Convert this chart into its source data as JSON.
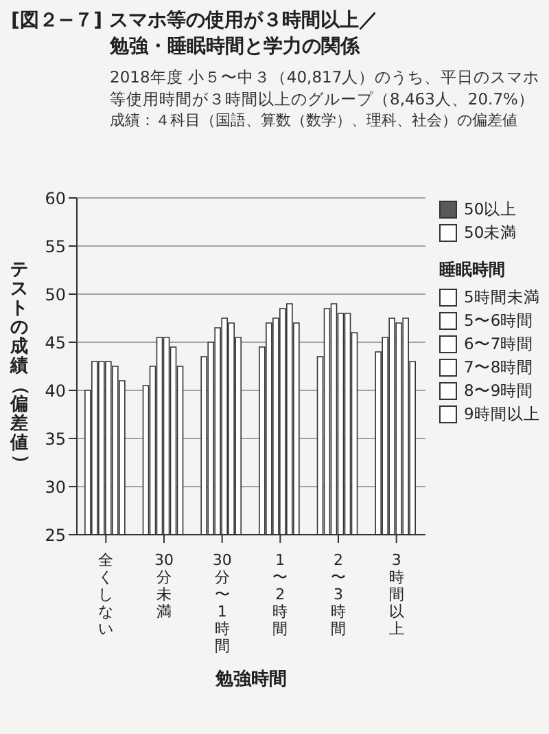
{
  "chart_data": {
    "type": "bar",
    "title": "[図２−７] スマホ等の使用が３時間以上／勉強・睡眠時間と学力の関係",
    "subtitle": "2018年度 小５〜中３（40,817人）のうち、平日のスマホ等使用時間が３時間以上のグループ（8,463人、20.7%）",
    "annotations": [
      "成績：４科目（国語、算数（数学）、理科、社会）の偏差値"
    ],
    "xlabel": "勉強時間",
    "ylabel": "テストの成績（偏差値）",
    "legend_title": "睡眠時間",
    "categories": [
      "全くしない",
      "30分未満",
      "30分〜1時間",
      "1〜2時間",
      "2〜3時間",
      "3時間以上"
    ],
    "series": [
      {
        "name": "50以上",
        "color": "#595959",
        "values": [
          null,
          null,
          null,
          null,
          null,
          null
        ]
      },
      {
        "name": "50未満",
        "color": "#ffffff",
        "values": [
          null,
          null,
          null,
          null,
          null,
          null
        ]
      },
      {
        "name": "5時間未満",
        "color": "#ffffff",
        "values": [
          40,
          40.5,
          43.5,
          44.5,
          43.5,
          44
        ]
      },
      {
        "name": "5〜6時間",
        "color": "#ffffff",
        "values": [
          43,
          42.5,
          45,
          47,
          48.5,
          45.5
        ]
      },
      {
        "name": "6〜7時間",
        "color": "#ffffff",
        "values": [
          43,
          45.5,
          46.5,
          47.5,
          49,
          47.5
        ]
      },
      {
        "name": "7〜8時間",
        "color": "#ffffff",
        "values": [
          43,
          45.5,
          47.5,
          48.5,
          48,
          47
        ]
      },
      {
        "name": "8〜9時間",
        "color": "#ffffff",
        "values": [
          42.5,
          44.5,
          47,
          49,
          48,
          47.5
        ]
      },
      {
        "name": "9時間以上",
        "color": "#ffffff",
        "values": [
          41,
          42.5,
          45.5,
          47,
          46,
          43
        ]
      }
    ],
    "ylim": [
      25,
      60
    ],
    "yticks": [
      25,
      30,
      35,
      40,
      45,
      50,
      55,
      60
    ],
    "grid": "y",
    "legend": "right"
  }
}
